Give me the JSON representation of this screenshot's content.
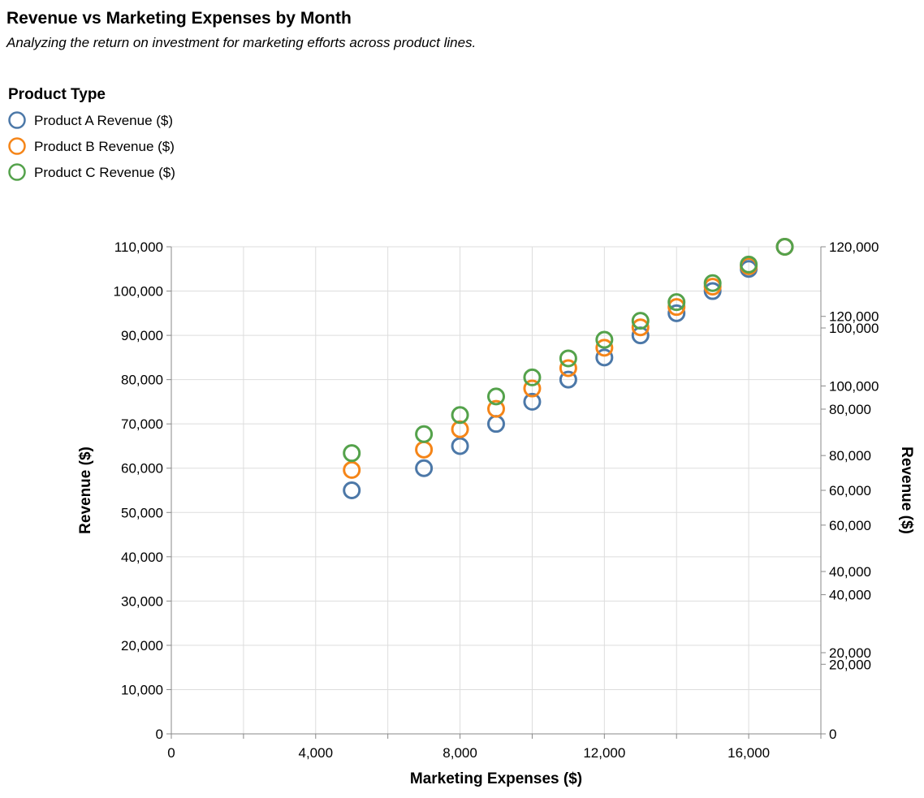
{
  "chart_data": {
    "type": "scatter",
    "title": "Revenue vs Marketing Expenses by Month",
    "subtitle": "Analyzing the return on investment for marketing efforts across product lines.",
    "xlabel": "Marketing Expenses ($)",
    "ylabel": "Revenue ($)",
    "ylabel_right": "Revenue ($)",
    "legend_title": "Product Type",
    "legend_position": "top-left",
    "grid": true,
    "xlim": [
      0,
      18000
    ],
    "ylim": [
      0,
      110000
    ],
    "x_ticks": [
      0,
      4000,
      8000,
      12000,
      16000
    ],
    "x_tick_labels": [
      "0",
      "4,000",
      "8,000",
      "12,000",
      "16,000"
    ],
    "y_ticks": [
      0,
      10000,
      20000,
      30000,
      40000,
      50000,
      60000,
      70000,
      80000,
      90000,
      100000,
      110000
    ],
    "y_tick_labels": [
      "0",
      "10,000",
      "20,000",
      "30,000",
      "40,000",
      "50,000",
      "60,000",
      "70,000",
      "80,000",
      "90,000",
      "100,000",
      "110,000"
    ],
    "right_axes": [
      {
        "ylim": [
          0,
          120000
        ],
        "ticks": [
          0,
          20000,
          40000,
          60000,
          80000,
          100000,
          120000
        ],
        "tick_labels": [
          "0",
          "20,000",
          "40,000",
          "60,000",
          "80,000",
          "100,000",
          "120,000"
        ]
      },
      {
        "ylim": [
          0,
          140000
        ],
        "ticks": [
          20000,
          40000,
          60000,
          80000,
          100000,
          120000
        ],
        "tick_labels": [
          "20,000",
          "40,000",
          "60,000",
          "80,000",
          "100,000",
          "120,000"
        ]
      }
    ],
    "series": [
      {
        "name": "Product A Revenue ($)",
        "color": "#4c78a8",
        "x": [
          5000,
          7000,
          8000,
          9000,
          10000,
          11000,
          12000,
          13000,
          14000,
          15000,
          16000,
          17000
        ],
        "y": [
          55000,
          60000,
          65000,
          70000,
          75000,
          80000,
          85000,
          90000,
          95000,
          100000,
          105000,
          110000
        ]
      },
      {
        "name": "Product B Revenue ($)",
        "color": "#f58518",
        "x": [
          5000,
          7000,
          8000,
          9000,
          10000,
          11000,
          12000,
          13000,
          14000,
          15000,
          16000,
          17000
        ],
        "y": [
          59600,
          64200,
          68800,
          73400,
          78000,
          82600,
          87200,
          91800,
          96400,
          101000,
          105600,
          110000
        ]
      },
      {
        "name": "Product C Revenue ($)",
        "color": "#54a24b",
        "x": [
          5000,
          7000,
          8000,
          9000,
          10000,
          11000,
          12000,
          13000,
          14000,
          15000,
          16000,
          17000
        ],
        "y": [
          63400,
          67700,
          72000,
          76200,
          80500,
          84800,
          89000,
          93300,
          97500,
          101800,
          106000,
          110000
        ]
      }
    ]
  }
}
